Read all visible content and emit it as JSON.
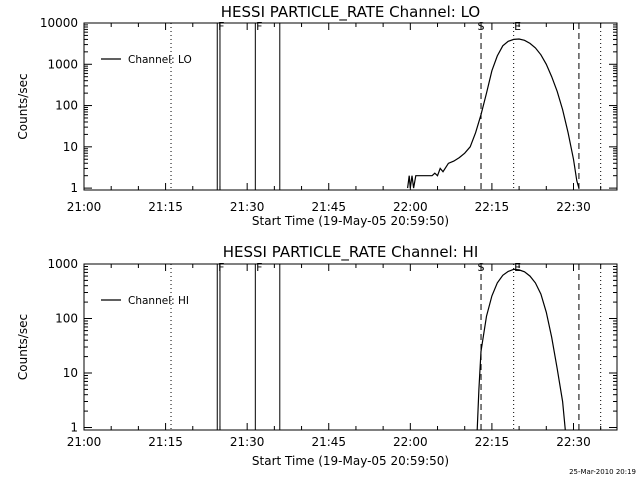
{
  "footer": {
    "timestamp": "25-Mar-2010 20:19"
  },
  "chart_data": [
    {
      "type": "line",
      "title": "HESSI PARTICLE_RATE Channel: LO",
      "xlabel": "Start Time (19-May-05 20:59:50)",
      "ylabel": "Counts/sec",
      "y_scale": "log",
      "xlim": [
        "21:00",
        "22:38"
      ],
      "ylim": [
        0.9,
        10000
      ],
      "x_tick_labels": [
        "21:00",
        "21:15",
        "21:30",
        "21:45",
        "22:00",
        "22:15",
        "22:30"
      ],
      "y_tick_labels": [
        "1",
        "10",
        "100",
        "1000",
        "10000"
      ],
      "legend": {
        "position": "top-left",
        "entries": [
          "Channel: LO"
        ]
      },
      "vlines": [
        {
          "time": "21:16",
          "style": "dotted",
          "label": ""
        },
        {
          "time": "21:24.5",
          "style": "solid",
          "label": "F"
        },
        {
          "time": "21:25",
          "style": "solid",
          "label": ""
        },
        {
          "time": "21:31.5",
          "style": "solid",
          "label": "F"
        },
        {
          "time": "21:36",
          "style": "solid",
          "label": ""
        },
        {
          "time": "22:13",
          "style": "dashed",
          "label": "S"
        },
        {
          "time": "22:19",
          "style": "dotted",
          "label": "E"
        },
        {
          "time": "22:31",
          "style": "dashed",
          "label": ""
        },
        {
          "time": "22:35",
          "style": "dotted",
          "label": ""
        }
      ],
      "series": [
        {
          "name": "Channel: LO",
          "points": [
            [
              "21:59.5",
              1.0
            ],
            [
              "21:59.8",
              2.0
            ],
            [
              "22:00",
              1.0
            ],
            [
              "22:00.3",
              2.0
            ],
            [
              "22:00.6",
              1.0
            ],
            [
              "22:01",
              2.0
            ],
            [
              "22:04",
              2.0
            ],
            [
              "22:04.5",
              2.3
            ],
            [
              "22:05",
              2.0
            ],
            [
              "22:05.5",
              3.0
            ],
            [
              "22:06",
              2.5
            ],
            [
              "22:07",
              4.0
            ],
            [
              "22:08",
              4.5
            ],
            [
              "22:09",
              5.5
            ],
            [
              "22:10",
              7.0
            ],
            [
              "22:11",
              10.0
            ],
            [
              "22:12",
              22.0
            ],
            [
              "22:13",
              60.0
            ],
            [
              "22:14",
              200.0
            ],
            [
              "22:15",
              700.0
            ],
            [
              "22:16",
              1600.0
            ],
            [
              "22:17",
              2800.0
            ],
            [
              "22:18",
              3600.0
            ],
            [
              "22:19",
              4000.0
            ],
            [
              "22:20",
              4100.0
            ],
            [
              "22:21",
              3800.0
            ],
            [
              "22:22",
              3200.0
            ],
            [
              "22:23",
              2500.0
            ],
            [
              "22:24",
              1700.0
            ],
            [
              "22:25",
              1000.0
            ],
            [
              "22:26",
              500.0
            ],
            [
              "22:27",
              220.0
            ],
            [
              "22:28",
              80.0
            ],
            [
              "22:29",
              22.0
            ],
            [
              "22:30",
              5.0
            ],
            [
              "22:30.6",
              1.5
            ],
            [
              "22:31",
              1.0
            ]
          ]
        }
      ]
    },
    {
      "type": "line",
      "title": "HESSI PARTICLE_RATE Channel: HI",
      "xlabel": "Start Time (19-May-05 20:59:50)",
      "ylabel": "Counts/sec",
      "y_scale": "log",
      "xlim": [
        "21:00",
        "22:38"
      ],
      "ylim": [
        0.9,
        1000
      ],
      "x_tick_labels": [
        "21:00",
        "21:15",
        "21:30",
        "21:45",
        "22:00",
        "22:15",
        "22:30"
      ],
      "y_tick_labels": [
        "1",
        "10",
        "100",
        "1000"
      ],
      "legend": {
        "position": "top-left",
        "entries": [
          "Channel: HI"
        ]
      },
      "vlines": [
        {
          "time": "21:16",
          "style": "dotted",
          "label": ""
        },
        {
          "time": "21:24.5",
          "style": "solid",
          "label": "F"
        },
        {
          "time": "21:25",
          "style": "solid",
          "label": ""
        },
        {
          "time": "21:31.5",
          "style": "solid",
          "label": "F"
        },
        {
          "time": "21:36",
          "style": "solid",
          "label": ""
        },
        {
          "time": "22:13",
          "style": "dashed",
          "label": "S"
        },
        {
          "time": "22:19",
          "style": "dotted",
          "label": "E"
        },
        {
          "time": "22:31",
          "style": "dashed",
          "label": ""
        },
        {
          "time": "22:35",
          "style": "dotted",
          "label": ""
        }
      ],
      "series": [
        {
          "name": "Channel: HI",
          "points": [
            [
              "22:12.3",
              0.9
            ],
            [
              "22:12.6",
              5.0
            ],
            [
              "22:13",
              25.0
            ],
            [
              "22:14",
              110.0
            ],
            [
              "22:15",
              260.0
            ],
            [
              "22:16",
              450.0
            ],
            [
              "22:17",
              620.0
            ],
            [
              "22:18",
              730.0
            ],
            [
              "22:19",
              800.0
            ],
            [
              "22:20",
              780.0
            ],
            [
              "22:21",
              720.0
            ],
            [
              "22:22",
              600.0
            ],
            [
              "22:23",
              450.0
            ],
            [
              "22:24",
              280.0
            ],
            [
              "22:25",
              130.0
            ],
            [
              "22:26",
              45.0
            ],
            [
              "22:27",
              12.0
            ],
            [
              "22:28",
              3.0
            ],
            [
              "22:28.5",
              0.9
            ]
          ]
        }
      ]
    }
  ]
}
